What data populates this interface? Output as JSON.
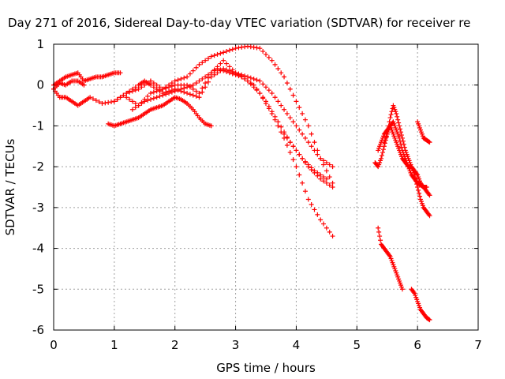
{
  "chart_data": {
    "type": "scatter",
    "title": "Day 271 of 2016, Sidereal Day-to-day VTEC variation (SDTVAR) for receiver re",
    "xlabel": "GPS time / hours",
    "ylabel": "SDTVAR / TECUs",
    "xlim": [
      0,
      7
    ],
    "ylim": [
      -6,
      1
    ],
    "xticks": [
      "0",
      "1",
      "2",
      "3",
      "4",
      "5",
      "6",
      "7"
    ],
    "yticks": [
      "1",
      "0",
      "-1",
      "-2",
      "-3",
      "-4",
      "-5",
      "-6"
    ],
    "grid": true,
    "marker": "plus",
    "color": "#ff0000",
    "series": [
      {
        "x": [
          0.0,
          0.1,
          0.2,
          0.3,
          0.4,
          0.5,
          0.6,
          0.7,
          0.8,
          0.9,
          1.0,
          1.1
        ],
        "y": [
          0.0,
          0.1,
          0.2,
          0.25,
          0.3,
          0.1,
          0.15,
          0.2,
          0.2,
          0.25,
          0.3,
          0.3
        ]
      },
      {
        "x": [
          0.0,
          0.1,
          0.2,
          0.3,
          0.4,
          0.5,
          0.6,
          0.8,
          1.0,
          1.2,
          1.4,
          1.6
        ],
        "y": [
          -0.1,
          -0.3,
          -0.3,
          -0.4,
          -0.5,
          -0.4,
          -0.3,
          -0.45,
          -0.4,
          -0.2,
          -0.1,
          0.1
        ]
      },
      {
        "x": [
          0.0,
          0.1,
          0.2,
          0.3,
          0.4,
          0.5
        ],
        "y": [
          -0.1,
          0.05,
          0.0,
          0.1,
          0.1,
          0.0
        ]
      },
      {
        "x": [
          0.9,
          1.0,
          1.1,
          1.2,
          1.3,
          1.4,
          1.5,
          1.6,
          1.7,
          1.8,
          1.9,
          2.0,
          2.1,
          2.2,
          2.3,
          2.4,
          2.5,
          2.6
        ],
        "y": [
          -0.95,
          -1.0,
          -0.95,
          -0.9,
          -0.85,
          -0.8,
          -0.7,
          -0.6,
          -0.55,
          -0.5,
          -0.4,
          -0.3,
          -0.35,
          -0.45,
          -0.6,
          -0.8,
          -0.95,
          -1.0
        ]
      },
      {
        "x": [
          1.0,
          1.2,
          1.4,
          1.5,
          1.6,
          1.8,
          2.0,
          2.2,
          2.4,
          2.6,
          2.8,
          3.0,
          3.2,
          3.4,
          3.6,
          3.8,
          4.0,
          4.2,
          4.4,
          4.6
        ],
        "y": [
          -0.4,
          -0.2,
          0.0,
          0.1,
          0.0,
          -0.2,
          -0.1,
          -0.2,
          -0.3,
          0.2,
          0.4,
          0.3,
          0.2,
          0.1,
          -0.2,
          -0.6,
          -1.0,
          -1.4,
          -1.8,
          -2.0
        ]
      },
      {
        "x": [
          1.2,
          1.4,
          1.6,
          1.8,
          2.0,
          2.2,
          2.4,
          2.6,
          2.8,
          3.0,
          3.2,
          3.4,
          3.6,
          3.8,
          4.0,
          4.2,
          4.4,
          4.6
        ],
        "y": [
          -0.3,
          -0.5,
          -0.2,
          -0.1,
          0.1,
          0.2,
          0.5,
          0.7,
          0.8,
          0.9,
          0.95,
          0.9,
          0.6,
          0.2,
          -0.4,
          -1.0,
          -1.8,
          -2.4
        ]
      },
      {
        "x": [
          1.3,
          1.5,
          1.7,
          1.9,
          2.1,
          2.3,
          2.5,
          2.7,
          2.9,
          3.1,
          3.3,
          3.5,
          3.7,
          3.9,
          4.1,
          4.3,
          4.5
        ],
        "y": [
          -0.6,
          -0.4,
          -0.3,
          -0.2,
          -0.1,
          0.0,
          0.2,
          0.4,
          0.3,
          0.2,
          0.0,
          -0.4,
          -0.9,
          -1.4,
          -1.8,
          -2.1,
          -2.3
        ]
      },
      {
        "x": [
          1.6,
          1.8,
          2.0,
          2.2,
          2.4,
          2.6,
          2.8,
          3.0,
          3.2,
          3.4,
          3.6,
          3.8,
          4.0,
          4.2,
          4.4,
          4.6
        ],
        "y": [
          0.1,
          -0.1,
          0.0,
          0.0,
          -0.2,
          0.3,
          0.6,
          0.3,
          0.1,
          -0.2,
          -0.7,
          -1.3,
          -2.0,
          -2.8,
          -3.3,
          -3.7
        ]
      },
      {
        "x": [
          3.8,
          4.0,
          4.2,
          4.4,
          4.6
        ],
        "y": [
          -1.2,
          -1.6,
          -2.0,
          -2.3,
          -2.5
        ]
      },
      {
        "x": [
          5.3,
          5.35,
          5.4,
          5.45,
          5.5,
          5.55,
          5.6,
          5.65,
          5.7,
          5.75,
          5.8,
          5.85,
          5.9,
          5.95,
          6.0,
          6.05,
          6.1,
          6.15,
          6.2
        ],
        "y": [
          -1.9,
          -2.0,
          -1.8,
          -1.5,
          -1.2,
          -0.8,
          -0.5,
          -0.7,
          -1.0,
          -1.3,
          -1.6,
          -1.8,
          -2.0,
          -2.1,
          -2.2,
          -2.4,
          -2.5,
          -2.6,
          -2.7
        ]
      },
      {
        "x": [
          5.35,
          5.4,
          5.45,
          5.5,
          5.55,
          5.6,
          5.65,
          5.7,
          5.75,
          5.8,
          5.85,
          5.9,
          5.95,
          6.0,
          6.05,
          6.1,
          6.15,
          6.2
        ],
        "y": [
          -1.6,
          -1.4,
          -1.2,
          -1.1,
          -1.0,
          -1.2,
          -1.4,
          -1.6,
          -1.8,
          -1.9,
          -2.0,
          -2.0,
          -2.2,
          -2.5,
          -2.8,
          -3.0,
          -3.1,
          -3.2
        ]
      },
      {
        "x": [
          5.45,
          5.5,
          5.55,
          5.6,
          5.65,
          5.7,
          5.75,
          5.8,
          5.85,
          5.9,
          5.95,
          6.0,
          6.05,
          6.1,
          6.15
        ],
        "y": [
          -1.4,
          -1.2,
          -1.0,
          -0.9,
          -1.1,
          -1.3,
          -1.6,
          -1.8,
          -2.0,
          -2.2,
          -2.3,
          -2.4,
          -2.45,
          -2.5,
          -2.5
        ]
      },
      {
        "x": [
          6.0,
          6.05,
          6.1,
          6.15,
          6.2
        ],
        "y": [
          -0.9,
          -1.1,
          -1.3,
          -1.35,
          -1.4
        ]
      },
      {
        "x": [
          5.35,
          5.4,
          5.45,
          5.5,
          5.55,
          5.6,
          5.65,
          5.7,
          5.75
        ],
        "y": [
          -3.5,
          -3.9,
          -4.0,
          -4.1,
          -4.2,
          -4.4,
          -4.6,
          -4.8,
          -5.0
        ]
      },
      {
        "x": [
          5.9,
          5.95,
          6.0,
          6.05,
          6.1,
          6.15,
          6.2
        ],
        "y": [
          -5.0,
          -5.1,
          -5.3,
          -5.5,
          -5.6,
          -5.7,
          -5.75
        ]
      }
    ]
  }
}
